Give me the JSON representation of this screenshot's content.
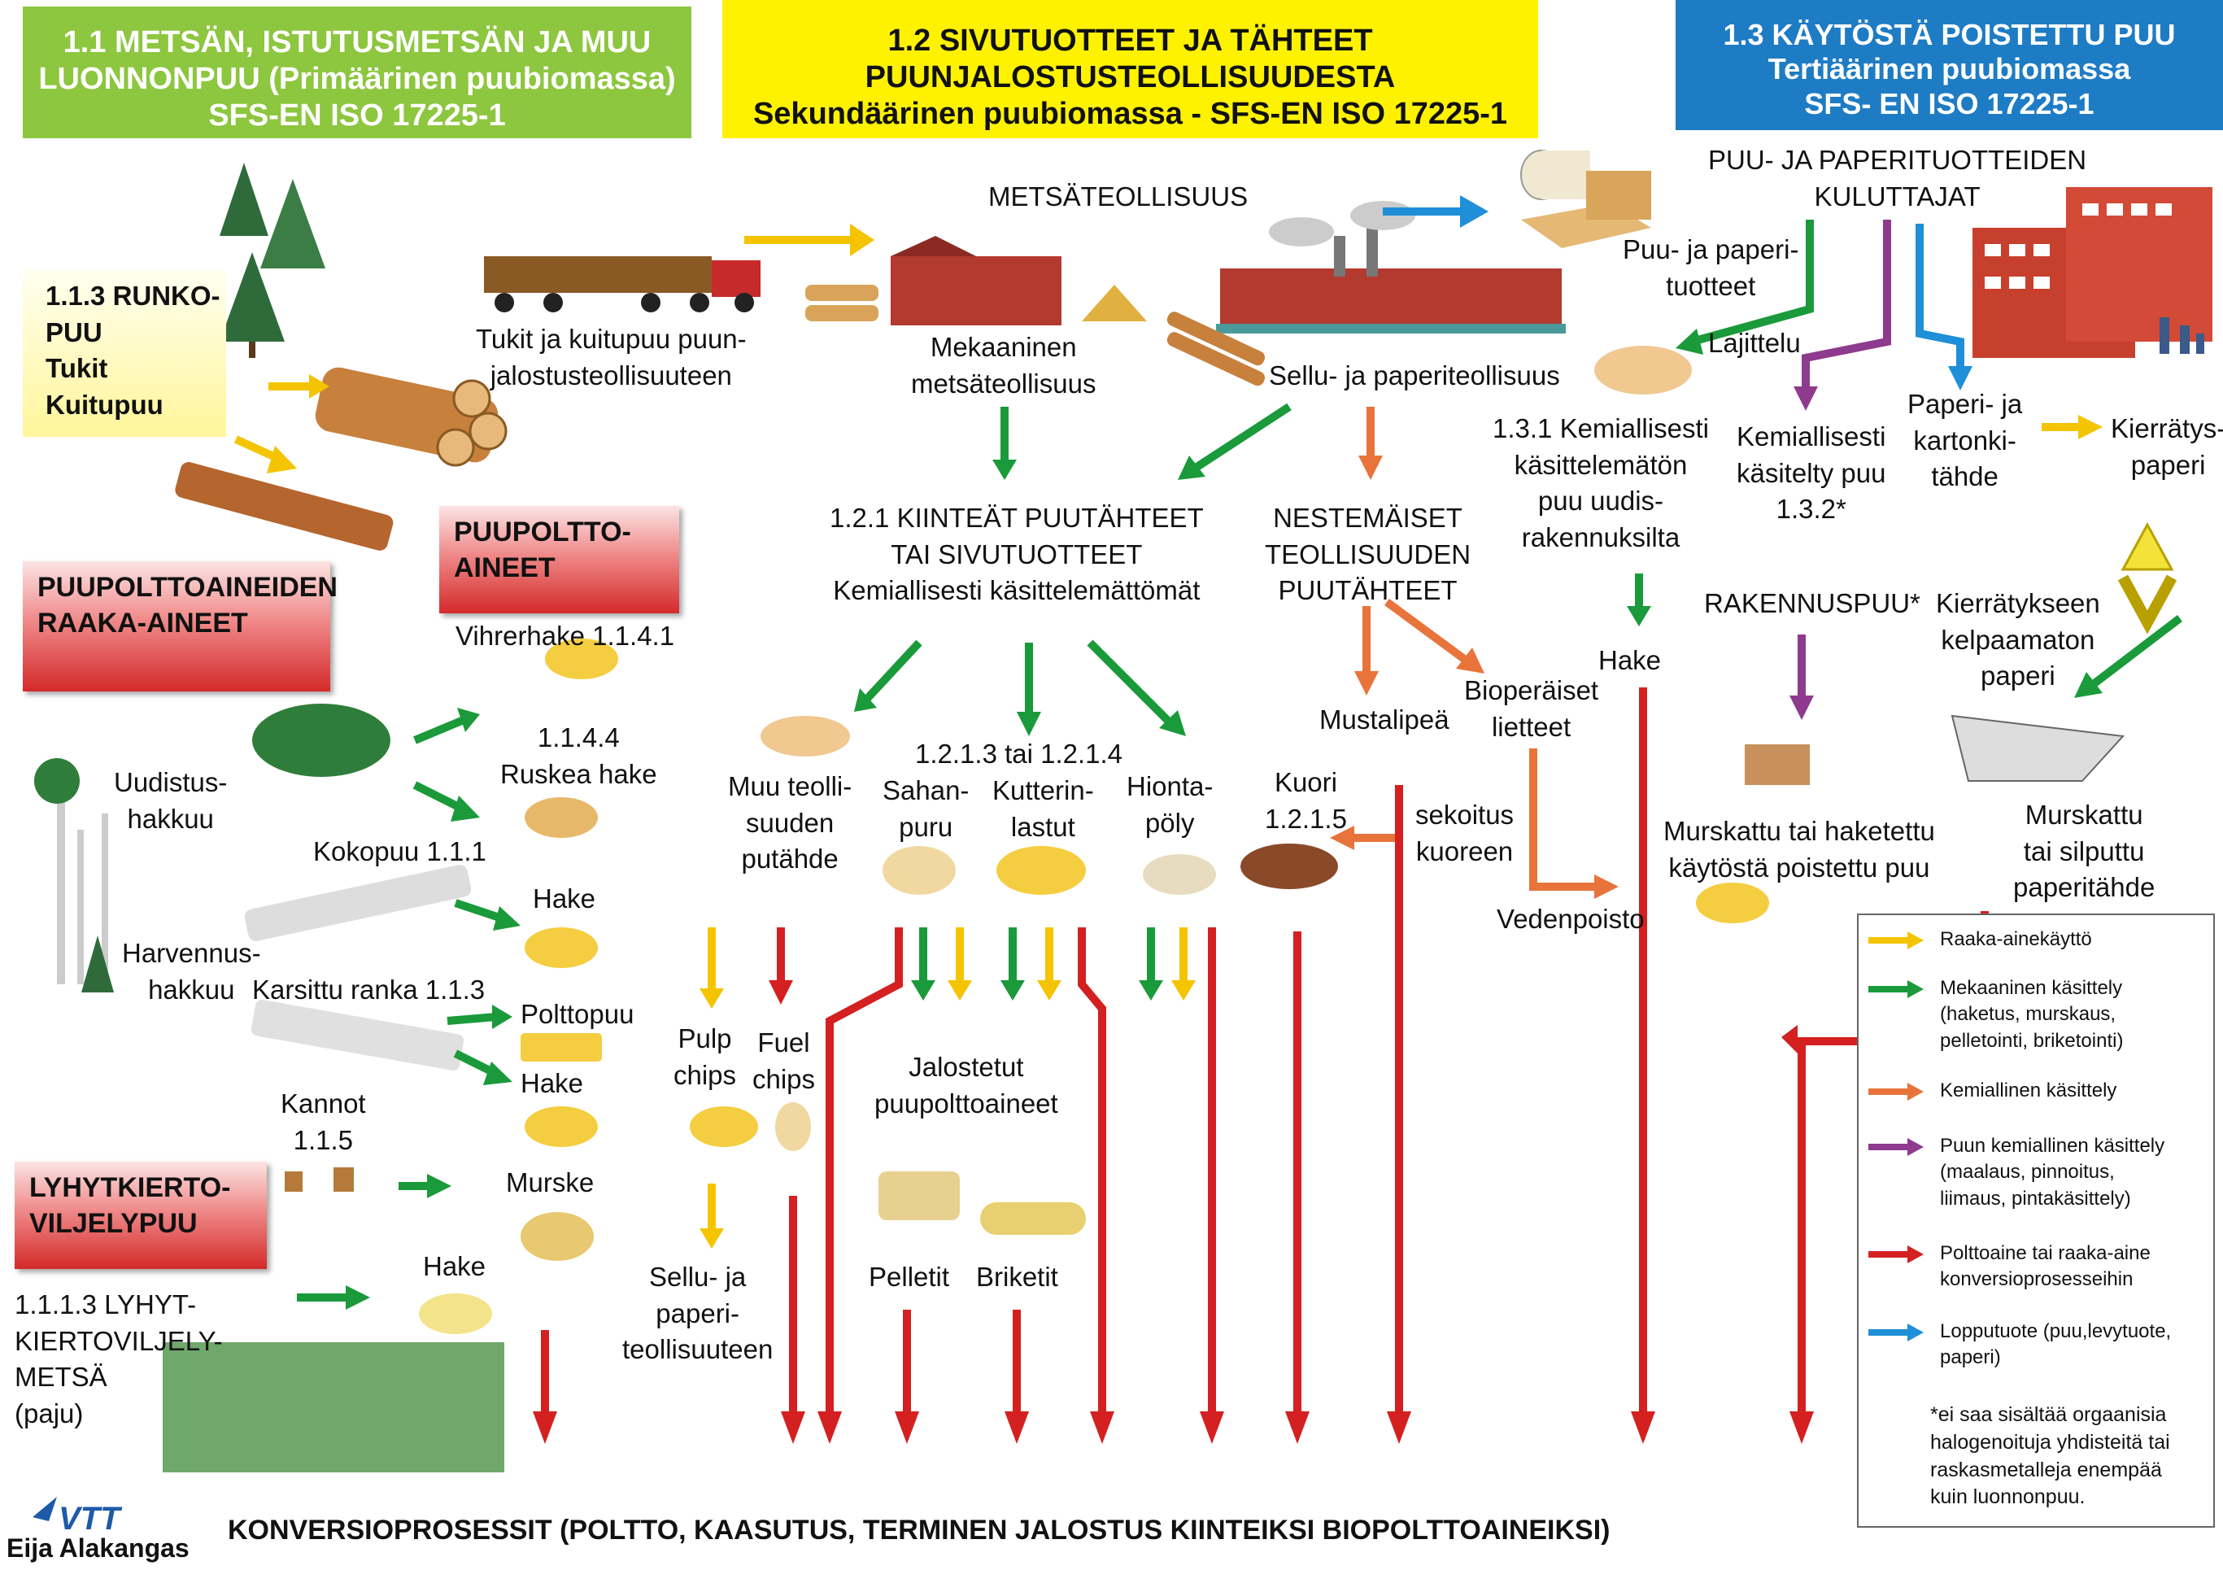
{
  "headers": {
    "primary": [
      "1.1 METSÄN, ISTUTUSMETSÄN JA MUU",
      "LUONNONPUU (Primäärinen puubiomassa)",
      "SFS-EN ISO 17225-1"
    ],
    "secondary": [
      "1.2 SIVUTUOTTEET JA TÄHTEET",
      "PUUNJALOSTUSTEOLLISUUDESTA",
      "Sekundäärinen puubiomassa - SFS-EN ISO 17225-1"
    ],
    "tertiary": [
      "1.3 KÄYTÖSTÄ POISTETTU PUU",
      "Tertiäärinen puubiomassa",
      "SFS- EN ISO 17225-1"
    ]
  },
  "boxes": {
    "runkopuu": "1.1.3 RUNKO-\nPUU\nTukit\nKuitupuu",
    "raaka_aineet": "PUUPOLTTOAINEIDEN\nRAAKA-AINEET",
    "puupolttoaineet": "PUUPOLTTO-\nAINEET",
    "lyhytkierto": "LYHYTKIERTO-\nVILJELYPUU"
  },
  "labels": {
    "tukit": "Tukit ja kuitupuu puun-\njalostusteollisuuteen",
    "metsateollisuus": "METSÄTEOLLISUUS",
    "mekaaninen": "Mekaaninen\nmetsäteollisuus",
    "sellu": "Sellu- ja paperiteollisuus",
    "kuluttajat": "PUU- JA PAPERITUOTTEIDEN\nKULUTTAJAT",
    "puu_paperi_tuotteet": "Puu- ja paperi-\ntuotteet",
    "lajittelu": "Lajittelu",
    "kiinteat": "1.2.1 KIINTEÄT PUUTÄHTEET\nTAI SIVUTUOTTEET\nKemiallisesti käsittelemättömät",
    "nestemaiset": "NESTEMÄISET\nTEOLLISUUDEN\nPUUTÄHTEET",
    "kemiallisesti_kasittelematon": "1.3.1 Kemiallisesti\nkäsittelemätön\npuu uudis-\nrakennuksilta",
    "kemiallisesti_kasitelty": "Kemiallisesti\nkäsitelty puu\n1.3.2*",
    "paperi_kartonki": "Paperi- ja\nkartonki-\ntähde",
    "kierratyspaperi": "Kierrätys-\npaperi",
    "rakennuspuu": "RAKENNUSPUU*",
    "kelpaamaton": "Kierrätykseen\nkelpaamaton\npaperi",
    "hake_1": "Hake",
    "vihrerhake": "Vihrerhake 1.1.4.1",
    "ruskea_hake": "1.1.4.4\nRuskea hake",
    "uudistus": "Uudistus-\nhakkuu",
    "kokopuu": "Kokopuu 1.1.1",
    "hake_2": "Hake",
    "harvennus": "Harvennus-\nhakkuu",
    "karsittu": "Karsittu ranka 1.1.3",
    "polttopuu": "Polttopuu",
    "hake_3": "Hake",
    "kannot": "Kannot\n1.1.5",
    "murske": "Murske",
    "hake_4": "Hake",
    "lyhytkierto_metsa": "1.1.1.3 LYHYT-\nKIERTOVILJELY-\nMETSÄ\n(paju)",
    "muu_teollisuus": "Muu teolli-\nsuuden\nputähde",
    "sahanpuru_code": "1.2.1.3 tai 1.2.1.4",
    "sahanpuru": "Sahan-\npuru",
    "kutterinlastut": "Kutterin-\nlastut",
    "hiontapoly": "Hionta-\npöly",
    "kuori": "Kuori\n1.2.1.5",
    "mustalipea": "Mustalipeä",
    "bioperaiset": "Bioperäiset\nlietteet",
    "sekoitus": "sekoitus\nkuoreen",
    "vedenpoisto": "Vedenpoisto",
    "hake_5": "Hake",
    "murskattu_puu": "Murskattu tai haketettu\nkäytöstä poistettu puu",
    "murskattu_paperi": "Murskattu\ntai silputtu\npaperitähde",
    "pulp_chips": "Pulp\nchips",
    "fuel_chips": "Fuel\nchips",
    "jalostetut": "Jalostetut\npuupolttoaineet",
    "sellu_paperi": "Sellu- ja\npaperi-\nteollisuuteen",
    "pelletit": "Pelletit",
    "briketit": "Briketit"
  },
  "legend": [
    {
      "color": "#f5c400",
      "text": "Raaka-ainekäyttö"
    },
    {
      "color": "#1a9a3a",
      "text": "Mekaaninen käsittely\n(haketus, murskaus,\npelletointi, briketointi)"
    },
    {
      "color": "#e8743b",
      "text": "Kemiallinen käsittely"
    },
    {
      "color": "#8e3a8e",
      "text": "Puun kemiallinen käsittely\n(maalaus, pinnoitus,\nliimaus, pintakäsittely)"
    },
    {
      "color": "#d42020",
      "text": "Polttoaine tai raaka-aine\nkonversioprosesseihin"
    },
    {
      "color": "#1e8fd8",
      "text": "Lopputuote (puu,levytuote,\npaperi)"
    }
  ],
  "legend_note": "*ei saa sisältää orgaanisia\nhalogenoituja yhdisteitä tai\nraskasmetalleja enempää\nkuin luonnonpuu.",
  "footer": {
    "title": "KONVERSIOPROSESSIT (POLTTO, KAASUTUS, TERMINEN JALOSTUS KIINTEIKSI BIOPOLTTOAINEIKSI)",
    "logo": "VTT",
    "author": "Eija Alakangas"
  },
  "colors": {
    "green": "#1a9a3a",
    "yellow": "#f5c400",
    "orange": "#e8743b",
    "purple": "#8e3a8e",
    "red": "#d42020",
    "blue": "#1e8fd8"
  }
}
